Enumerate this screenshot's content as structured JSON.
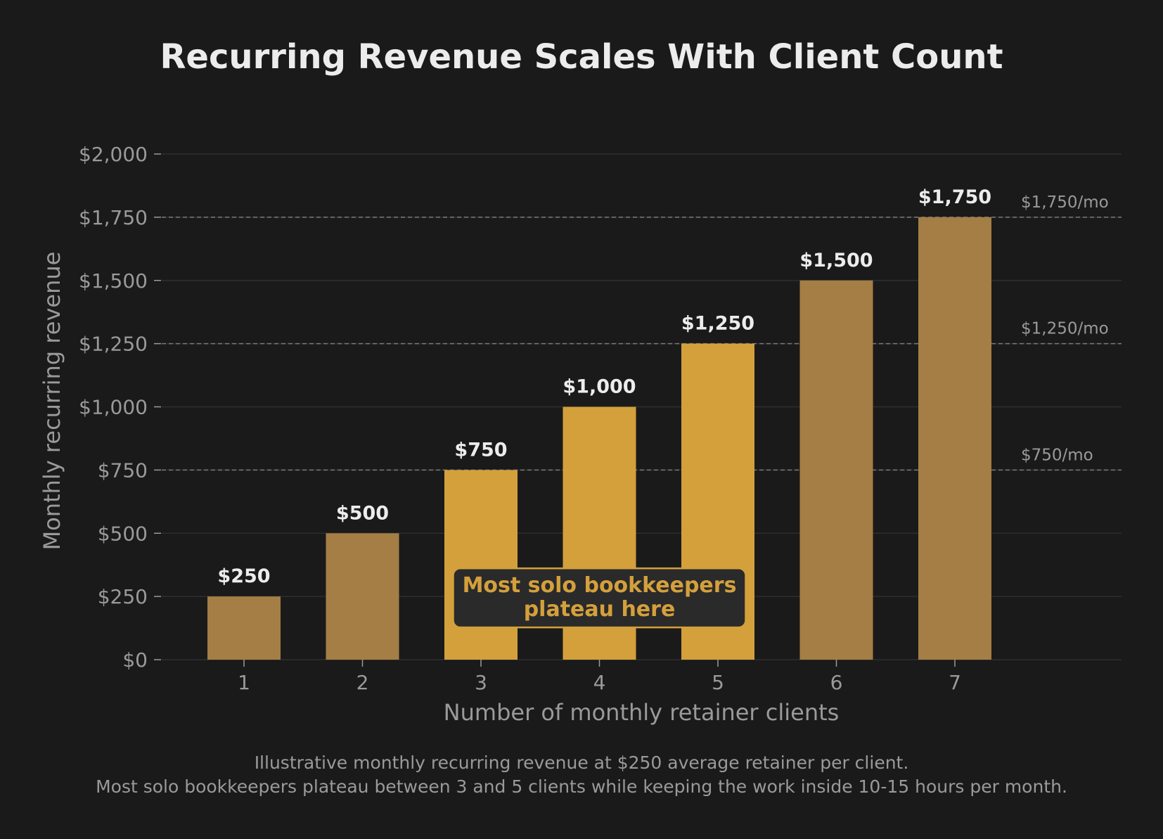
{
  "chart_data": {
    "type": "bar",
    "title": "Recurring Revenue Scales With Client Count",
    "xlabel": "Number of monthly retainer clients",
    "ylabel": "Monthly recurring revenue",
    "categories": [
      "1",
      "2",
      "3",
      "4",
      "5",
      "6",
      "7"
    ],
    "values": [
      250,
      500,
      750,
      1000,
      1250,
      1500,
      1750
    ],
    "value_labels": [
      "$250",
      "$500",
      "$750",
      "$1,000",
      "$1,250",
      "$1,500",
      "$1,750"
    ],
    "highlighted": [
      false,
      false,
      true,
      true,
      true,
      false,
      false
    ],
    "ylim": [
      0,
      2000
    ],
    "yticks": [
      0,
      250,
      500,
      750,
      1000,
      1250,
      1500,
      1750,
      2000
    ],
    "ytick_labels": [
      "$0",
      "$250",
      "$500",
      "$750",
      "$1,000",
      "$1,250",
      "$1,500",
      "$1,750",
      "$2,000"
    ],
    "reference_lines": [
      {
        "value": 750,
        "label": "$750/mo"
      },
      {
        "value": 1250,
        "label": "$1,250/mo"
      },
      {
        "value": 1750,
        "label": "$1,750/mo"
      }
    ],
    "annotation": {
      "lines": [
        "Most solo bookkeepers",
        "plateau here"
      ],
      "x_center": 4,
      "y_center": 250
    },
    "footnote": [
      "Illustrative monthly recurring revenue at $250 average retainer per client.",
      "Most solo bookkeepers plateau between 3 and 5 clients while keeping the work inside 10-15 hours per month."
    ],
    "grid": true,
    "colors": {
      "bar": "#a57e45",
      "bar_highlight": "#d4a03c",
      "background": "#1a1a1a",
      "grid": "#2e2e2e",
      "reference_line": "#7a7a7a",
      "annotation_bg": "#2a2a2a",
      "annotation_text": "#d4a03c"
    }
  }
}
